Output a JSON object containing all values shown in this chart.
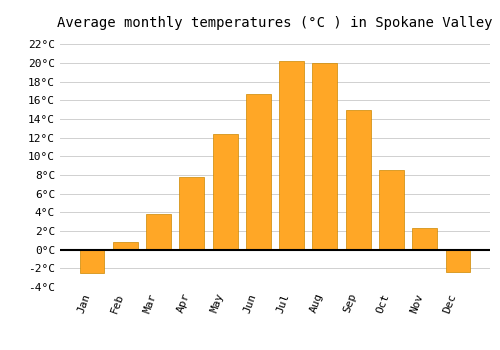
{
  "title": "Average monthly temperatures (°C ) in Spokane Valley",
  "months": [
    "Jan",
    "Feb",
    "Mar",
    "Apr",
    "May",
    "Jun",
    "Jul",
    "Aug",
    "Sep",
    "Oct",
    "Nov",
    "Dec"
  ],
  "values": [
    -2.5,
    0.8,
    3.8,
    7.8,
    12.4,
    16.7,
    20.2,
    20.0,
    15.0,
    8.5,
    2.3,
    -2.4
  ],
  "bar_color": "#FFA726",
  "bar_edge_color": "#CC8800",
  "ylim": [
    -4,
    23
  ],
  "yticks": [
    -4,
    -2,
    0,
    2,
    4,
    6,
    8,
    10,
    12,
    14,
    16,
    18,
    20,
    22
  ],
  "background_color": "#ffffff",
  "grid_color": "#d0d0d0",
  "title_fontsize": 10,
  "tick_fontsize": 8,
  "font_family": "monospace"
}
